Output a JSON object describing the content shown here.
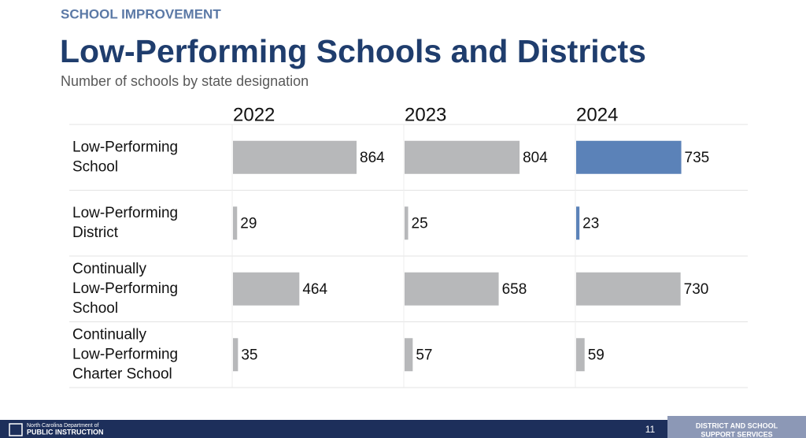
{
  "header": {
    "section": "SCHOOL IMPROVEMENT"
  },
  "chart_data": {
    "type": "bar",
    "title": "Low-Performing Schools and Districts",
    "subtitle": "Number of schools by state designation",
    "categories": [
      [
        "Low-Performing",
        "School"
      ],
      [
        "Low-Performing",
        "District"
      ],
      [
        "Continually",
        "Low-Performing",
        "School"
      ],
      [
        "Continually",
        "Low-Performing",
        "Charter School"
      ]
    ],
    "series": [
      {
        "name": "2022",
        "color": "#b7b8ba",
        "colors": [
          "#b7b8ba",
          "#b7b8ba",
          "#b7b8ba",
          "#b7b8ba"
        ],
        "values": [
          864,
          29,
          464,
          35
        ]
      },
      {
        "name": "2023",
        "color": "#b7b8ba",
        "colors": [
          "#b7b8ba",
          "#b7b8ba",
          "#b7b8ba",
          "#b7b8ba"
        ],
        "values": [
          804,
          25,
          658,
          57
        ]
      },
      {
        "name": "2024",
        "color": "#b7b8ba",
        "colors": [
          "#5b82b8",
          "#5b82b8",
          "#b7b8ba",
          "#b7b8ba"
        ],
        "values": [
          735,
          23,
          730,
          59
        ]
      }
    ]
  },
  "footer": {
    "org_line1": "North Carolina Department of",
    "org_line2": "PUBLIC INSTRUCTION",
    "page": "11",
    "unit_line1": "DISTRICT AND SCHOOL",
    "unit_line2": "SUPPORT SERVICES"
  }
}
